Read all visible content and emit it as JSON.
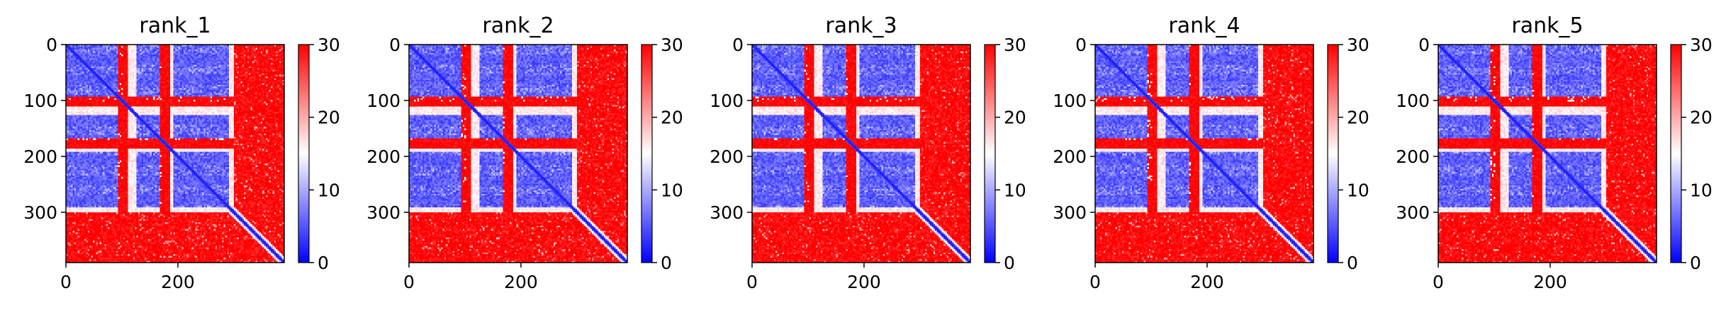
{
  "figure": {
    "colormap": "bwr",
    "colors": {
      "low": "#0000ff",
      "mid": "#ffffff",
      "high": "#ff0000"
    }
  },
  "chart_data": [
    {
      "type": "heatmap",
      "title": "rank_1",
      "matrix_size": 390,
      "xticks": [
        0,
        200
      ],
      "yticks": [
        0,
        100,
        200,
        300
      ],
      "colorbar": {
        "range": [
          0,
          30
        ],
        "ticks": [
          0,
          10,
          20,
          30
        ]
      },
      "blocks": [
        [
          0,
          100
        ],
        [
          125,
          170
        ],
        [
          190,
          290
        ]
      ],
      "stripes": [
        100,
        175
      ],
      "disordered_start": 300,
      "diagonal": true
    },
    {
      "type": "heatmap",
      "title": "rank_2",
      "matrix_size": 390,
      "xticks": [
        0,
        200
      ],
      "yticks": [
        0,
        100,
        200,
        300
      ],
      "colorbar": {
        "range": [
          0,
          30
        ],
        "ticks": [
          0,
          10,
          20,
          30
        ]
      },
      "blocks": [
        [
          0,
          100
        ],
        [
          125,
          170
        ],
        [
          190,
          290
        ]
      ],
      "stripes": [
        100,
        175
      ],
      "disordered_start": 300,
      "diagonal": true
    },
    {
      "type": "heatmap",
      "title": "rank_3",
      "matrix_size": 390,
      "xticks": [
        0,
        200
      ],
      "yticks": [
        0,
        100,
        200,
        300
      ],
      "colorbar": {
        "range": [
          0,
          30
        ],
        "ticks": [
          0,
          10,
          20,
          30
        ]
      },
      "blocks": [
        [
          0,
          100
        ],
        [
          125,
          170
        ],
        [
          190,
          290
        ]
      ],
      "stripes": [
        100,
        175
      ],
      "disordered_start": 300,
      "diagonal": true
    },
    {
      "type": "heatmap",
      "title": "rank_4",
      "matrix_size": 390,
      "xticks": [
        0,
        200
      ],
      "yticks": [
        0,
        100,
        200,
        300
      ],
      "colorbar": {
        "range": [
          0,
          30
        ],
        "ticks": [
          0,
          10,
          20,
          30
        ]
      },
      "blocks": [
        [
          0,
          100
        ],
        [
          125,
          170
        ],
        [
          190,
          290
        ]
      ],
      "stripes": [
        100,
        175
      ],
      "disordered_start": 300,
      "diagonal": true
    },
    {
      "type": "heatmap",
      "title": "rank_5",
      "matrix_size": 390,
      "xticks": [
        0,
        200
      ],
      "yticks": [
        0,
        100,
        200,
        300
      ],
      "colorbar": {
        "range": [
          0,
          30
        ],
        "ticks": [
          0,
          10,
          20,
          30
        ]
      },
      "blocks": [
        [
          0,
          100
        ],
        [
          125,
          170
        ],
        [
          190,
          290
        ]
      ],
      "stripes": [
        100,
        175
      ],
      "disordered_start": 300,
      "diagonal": true
    }
  ]
}
